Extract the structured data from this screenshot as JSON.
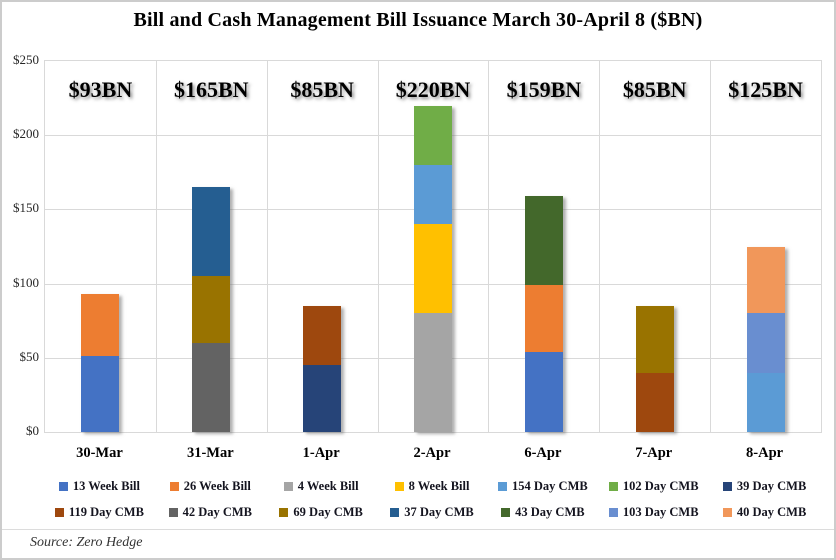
{
  "source": "Source: Zero Hedge",
  "chart_data": {
    "type": "bar",
    "stacked": true,
    "title": "Bill and Cash Management Bill Issuance March 30-April 8 ($BN)",
    "xlabel": "",
    "ylabel": "",
    "ylim": [
      0,
      250
    ],
    "grid": true,
    "legend_position": "bottom",
    "y_ticks": [
      {
        "label": "$0",
        "value": 0
      },
      {
        "label": "$50",
        "value": 50
      },
      {
        "label": "$100",
        "value": 100
      },
      {
        "label": "$150",
        "value": 150
      },
      {
        "label": "$200",
        "value": 200
      },
      {
        "label": "$250",
        "value": 250
      }
    ],
    "categories": [
      "30-Mar",
      "31-Mar",
      "1-Apr",
      "2-Apr",
      "6-Apr",
      "7-Apr",
      "8-Apr"
    ],
    "totals": [
      "$93BN",
      "$165BN",
      "$85BN",
      "$220BN",
      "$159BN",
      "$85BN",
      "$125BN"
    ],
    "colors": {
      "13 Week Bill": "#4472C4",
      "26 Week Bill": "#ED7D31",
      "4 Week Bill": "#A5A5A5",
      "8 Week Bill": "#FFC000",
      "154 Day CMB": "#5B9BD5",
      "102 Day CMB": "#70AD47",
      "39 Day CMB": "#264478",
      "119 Day CMB": "#9E480E",
      "42 Day CMB": "#636363",
      "69 Day CMB": "#997300",
      "37 Day CMB": "#255E91",
      "43 Day CMB": "#43682B",
      "103 Day CMB": "#698ED0",
      "40 Day CMB": "#F1975A"
    },
    "legend_row1": [
      "13 Week Bill",
      "26 Week Bill",
      "4 Week Bill",
      "8 Week Bill",
      "154 Day CMB",
      "102 Day CMB",
      "39 Day CMB"
    ],
    "legend_row2": [
      "119 Day CMB",
      "42 Day CMB",
      "69 Day CMB",
      "37 Day CMB",
      "43 Day CMB",
      "103 Day CMB",
      "40 Day CMB"
    ],
    "bars": [
      {
        "category": "30-Mar",
        "total": 93,
        "total_label": "$93BN",
        "segments": [
          [
            "13 Week Bill",
            51
          ],
          [
            "26 Week Bill",
            42
          ]
        ]
      },
      {
        "category": "31-Mar",
        "total": 165,
        "total_label": "$165BN",
        "segments": [
          [
            "42 Day CMB",
            60
          ],
          [
            "69 Day CMB",
            45
          ],
          [
            "37 Day CMB",
            60
          ]
        ]
      },
      {
        "category": "1-Apr",
        "total": 85,
        "total_label": "$85BN",
        "segments": [
          [
            "39 Day CMB",
            45
          ],
          [
            "119 Day CMB",
            40
          ]
        ]
      },
      {
        "category": "2-Apr",
        "total": 220,
        "total_label": "$220BN",
        "segments": [
          [
            "4 Week Bill",
            80
          ],
          [
            "8 Week Bill",
            60
          ],
          [
            "154 Day CMB",
            40
          ],
          [
            "102 Day CMB",
            40
          ]
        ]
      },
      {
        "category": "6-Apr",
        "total": 159,
        "total_label": "$159BN",
        "segments": [
          [
            "13 Week Bill",
            54
          ],
          [
            "26 Week Bill",
            45
          ],
          [
            "43 Day CMB",
            60
          ]
        ]
      },
      {
        "category": "7-Apr",
        "total": 85,
        "total_label": "$85BN",
        "segments": [
          [
            "119 Day CMB",
            40
          ],
          [
            "69 Day CMB",
            45
          ]
        ]
      },
      {
        "category": "8-Apr",
        "total": 125,
        "total_label": "$125BN",
        "segments": [
          [
            "154 Day CMB",
            40
          ],
          [
            "103 Day CMB",
            40
          ],
          [
            "40 Day CMB",
            45
          ]
        ]
      }
    ]
  }
}
